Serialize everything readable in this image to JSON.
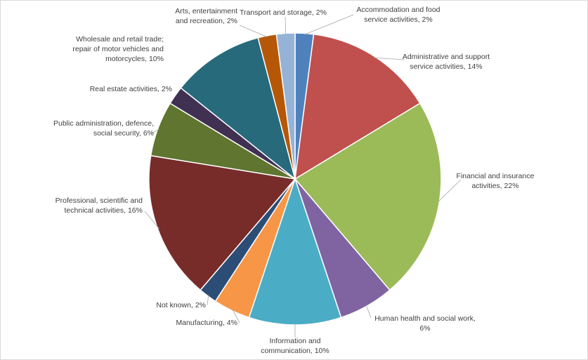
{
  "chart_data": {
    "type": "pie",
    "title": "",
    "start_angle_deg": 0,
    "direction": "clockwise",
    "show_data_labels": true,
    "legend": "none",
    "slices": [
      {
        "label": "Accommodation and food service activities",
        "value": 2,
        "display": "2%",
        "color": "#4f81bd",
        "lines": [
          "Accommodation and food",
          "service activities, 2%"
        ]
      },
      {
        "label": "Administrative and support service activities",
        "value": 14,
        "display": "14%",
        "color": "#c0504d",
        "lines": [
          "Administrative and support",
          "service activities, 14%"
        ]
      },
      {
        "label": "Financial and insurance activities",
        "value": 22,
        "display": "22%",
        "color": "#9bbb59",
        "lines": [
          "Financial and insurance",
          "activities, 22%"
        ]
      },
      {
        "label": "Human health and social work",
        "value": 6,
        "display": "6%",
        "color": "#8064a2",
        "lines": [
          "Human health and social work,",
          "6%"
        ]
      },
      {
        "label": "Information and communication",
        "value": 10,
        "display": "10%",
        "color": "#4bacc6",
        "lines": [
          "Information and",
          "communication, 10%"
        ]
      },
      {
        "label": "Manufacturing",
        "value": 4,
        "display": "4%",
        "color": "#f79646",
        "lines": [
          "Manufacturing, 4%"
        ]
      },
      {
        "label": "Not known",
        "value": 2,
        "display": "2%",
        "color": "#2c4d75",
        "lines": [
          "Not known, 2%"
        ]
      },
      {
        "label": "Professional, scientific and technical activities",
        "value": 16,
        "display": "16%",
        "color": "#772c2a",
        "lines": [
          "Professional, scientific and",
          "technical activities, 16%"
        ]
      },
      {
        "label": "Public administration, defence, social security",
        "value": 6,
        "display": "6%",
        "color": "#5f7530",
        "lines": [
          "Public administration, defence,",
          "social security, 6%"
        ]
      },
      {
        "label": "Real estate activities",
        "value": 2,
        "display": "2%",
        "color": "#403152",
        "lines": [
          "Real estate activities, 2%"
        ]
      },
      {
        "label": "Wholesale and retail trade; repair of motor vehicles and motorcycles",
        "value": 10,
        "display": "10%",
        "color": "#276a7c",
        "lines": [
          "Wholesale and retail trade;",
          "repair of motor vehicles and",
          "motorcycles, 10%"
        ]
      },
      {
        "label": "Arts, entertainment and recreation",
        "value": 2,
        "display": "2%",
        "color": "#b65708",
        "lines": [
          "Arts, entertainment",
          "and recreation, 2%"
        ]
      },
      {
        "label": "Transport and storage",
        "value": 2,
        "display": "2%",
        "color": "#95b3d7",
        "lines": [
          "Transport and storage, 2%"
        ]
      }
    ]
  }
}
